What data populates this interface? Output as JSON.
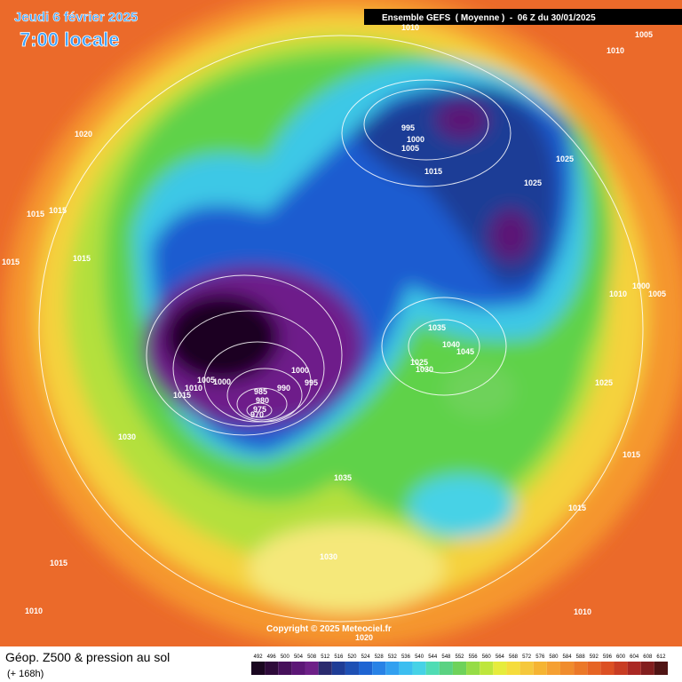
{
  "header": {
    "date": "Jeudi 6 février 2025",
    "time": "7:00 locale",
    "model": "Ensemble GEFS  ( Moyenne )  -  06 Z du 30/01/2025"
  },
  "copyright": "Copyright © 2025 Meteociel.fr",
  "footer": {
    "title": "Géop. Z500 & pression au sol",
    "lead": "(+ 168h)"
  },
  "isobars": [
    1010,
    1005,
    1010,
    995,
    1000,
    1005,
    1015,
    1025,
    1025,
    1020,
    1015,
    1015,
    1015,
    1015,
    1010,
    1005,
    1000,
    1035,
    1040,
    1045,
    1025,
    1030,
    1000,
    995,
    990,
    985,
    980,
    975,
    970,
    1005,
    1000,
    1010,
    1015,
    1030,
    1035,
    1025,
    1015,
    1015,
    1030,
    1015,
    1010,
    1010,
    1020
  ],
  "scale": {
    "values": [
      492,
      496,
      500,
      504,
      508,
      512,
      516,
      520,
      524,
      528,
      532,
      536,
      540,
      544,
      548,
      552,
      556,
      560,
      564,
      568,
      572,
      576,
      580,
      584,
      588,
      592,
      596,
      600,
      604,
      608,
      612
    ],
    "colors": [
      "#1a0620",
      "#2e0a3a",
      "#46105a",
      "#5c1676",
      "#6e2088",
      "#2a2a6e",
      "#1e3c96",
      "#1e50b4",
      "#1e64d2",
      "#2882e6",
      "#32a0f0",
      "#3cbef0",
      "#46d2e6",
      "#50dcb4",
      "#5ad282",
      "#6ed25a",
      "#96dc46",
      "#bee63c",
      "#e6ec3c",
      "#f5dc3c",
      "#f5c83c",
      "#f5b432",
      "#f5a032",
      "#f08c2d",
      "#eb7828",
      "#e66423",
      "#dc5023",
      "#c83c23",
      "#aa2823",
      "#821e1e",
      "#501414"
    ]
  }
}
